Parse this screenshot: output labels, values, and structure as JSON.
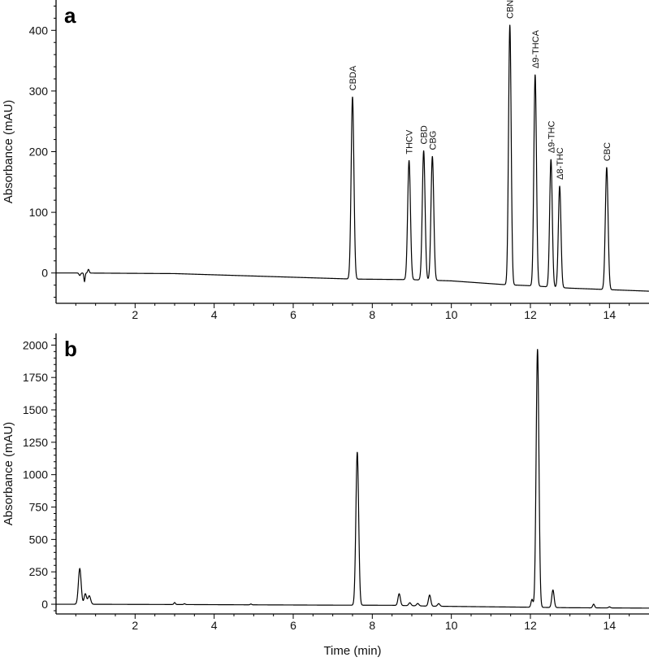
{
  "chart_data": [
    {
      "type": "line",
      "panel_label": "a",
      "ylabel": "Absorbance (mAU)",
      "xlabel": "",
      "xlim": [
        0,
        15
      ],
      "ylim": [
        -50,
        450
      ],
      "xticks": [
        2,
        4,
        6,
        8,
        10,
        12,
        14
      ],
      "yticks": [
        0,
        100,
        200,
        300,
        400
      ],
      "grid": false,
      "baseline": [
        [
          0,
          0
        ],
        [
          0.5,
          0
        ],
        [
          3,
          -1
        ],
        [
          5,
          -5
        ],
        [
          7.5,
          -10
        ],
        [
          9,
          -11
        ],
        [
          10,
          -13
        ],
        [
          11.3,
          -19
        ],
        [
          12,
          -21
        ],
        [
          13,
          -25
        ],
        [
          15,
          -30
        ]
      ],
      "peaks": [
        {
          "label": "CBDA",
          "time": 7.5,
          "height": 300,
          "width": 0.035
        },
        {
          "label": "THCV",
          "time": 8.93,
          "height": 196,
          "width": 0.035
        },
        {
          "label": "CBD",
          "time": 9.3,
          "height": 213,
          "width": 0.035
        },
        {
          "label": "CBG",
          "time": 9.52,
          "height": 204,
          "width": 0.035
        },
        {
          "label": "CBN",
          "time": 11.48,
          "height": 428,
          "width": 0.033
        },
        {
          "label": "Δ9-THCA",
          "time": 12.12,
          "height": 348,
          "width": 0.033
        },
        {
          "label": "Δ9-THC",
          "time": 12.52,
          "height": 210,
          "width": 0.033
        },
        {
          "label": "Δ8-THC",
          "time": 12.74,
          "height": 167,
          "width": 0.033
        },
        {
          "label": "CBC",
          "time": 13.93,
          "height": 201,
          "width": 0.035
        }
      ]
    },
    {
      "type": "line",
      "panel_label": "b",
      "ylabel": "Absorbance (mAU)",
      "xlabel": "Time (min)",
      "xlim": [
        0,
        15
      ],
      "ylim": [
        -75,
        2090
      ],
      "xticks": [
        2,
        4,
        6,
        8,
        10,
        12,
        14
      ],
      "yticks": [
        0,
        250,
        500,
        750,
        1000,
        1250,
        1500,
        1750,
        2000
      ],
      "grid": false,
      "baseline": [
        [
          0,
          0
        ],
        [
          0.5,
          0
        ],
        [
          3,
          -2
        ],
        [
          7,
          -7
        ],
        [
          8.5,
          -8
        ],
        [
          9.5,
          -15
        ],
        [
          11,
          -20
        ],
        [
          12,
          -23
        ],
        [
          13,
          -27
        ],
        [
          15,
          -30
        ]
      ],
      "peaks": [
        {
          "time": 0.6,
          "height": 275,
          "width": 0.035
        },
        {
          "time": 0.74,
          "height": 80,
          "width": 0.03
        },
        {
          "time": 0.84,
          "height": 65,
          "width": 0.035
        },
        {
          "time": 3.0,
          "height": 15,
          "width": 0.02
        },
        {
          "time": 3.25,
          "height": 6,
          "width": 0.02
        },
        {
          "time": 4.93,
          "height": 6,
          "width": 0.02
        },
        {
          "time": 7.62,
          "height": 1180,
          "width": 0.035
        },
        {
          "time": 8.68,
          "height": 90,
          "width": 0.03
        },
        {
          "time": 8.95,
          "height": 22,
          "width": 0.03
        },
        {
          "time": 9.15,
          "height": 18,
          "width": 0.03
        },
        {
          "time": 9.45,
          "height": 85,
          "width": 0.03
        },
        {
          "time": 9.68,
          "height": 20,
          "width": 0.03
        },
        {
          "time": 12.04,
          "height": 60,
          "width": 0.025
        },
        {
          "time": 12.18,
          "height": 1990,
          "width": 0.035
        },
        {
          "time": 12.57,
          "height": 135,
          "width": 0.03
        },
        {
          "time": 13.6,
          "height": 28,
          "width": 0.025
        },
        {
          "time": 14.0,
          "height": 8,
          "width": 0.025
        }
      ]
    }
  ]
}
